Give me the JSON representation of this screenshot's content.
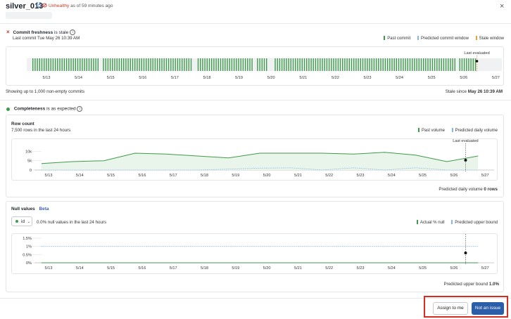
{
  "header": {
    "title": "silver_013",
    "status_label": "Unhealthy",
    "status_suffix": "as of 59 minutes ago"
  },
  "freshness": {
    "heading": "Commit freshness",
    "heading_suffix": "is stale",
    "last_commit": "Last commit Tue May 26 10:39 AM",
    "legend": [
      "Past commit",
      "Predicted commit window",
      "Stale window"
    ],
    "last_evaluated": "Last evaluated",
    "footer_left": "Showing up to 1,000 non-empty commits",
    "footer_right_prefix": "Stale since",
    "footer_right_value": "May 26 10:39 AM",
    "dates": [
      "5/13",
      "5/14",
      "5/15",
      "5/16",
      "5/17",
      "5/18",
      "5/19",
      "5/20",
      "5/21",
      "5/22",
      "5/23",
      "5/24",
      "5/25",
      "5/26",
      "5/27"
    ]
  },
  "completeness": {
    "heading": "Completeness",
    "heading_suffix": "is as expected",
    "row_count": {
      "title": "Row count",
      "subtitle": "7,500 rows in the last 24 hours",
      "legend": [
        "Past volume",
        "Predicted daily volume"
      ],
      "last_evaluated": "Last evaluated",
      "footer_prefix": "Predicted daily volume",
      "footer_value": "0 rows"
    },
    "null_values": {
      "title": "Null values",
      "badge": "Beta",
      "column": "id",
      "subtitle": "0.0% null values in the last 24 hours",
      "legend": [
        "Actual % null",
        "Predicted upper bound"
      ],
      "last_evaluated": "Last evaluated",
      "footer_prefix": "Predicted upper bound",
      "footer_value": "1.0%"
    }
  },
  "actions": {
    "assign": "Assign to me",
    "not_issue": "Not an issue"
  },
  "colors": {
    "past": "#3f9a4b",
    "predicted": "#86b7e8",
    "stale": "#e8a23a",
    "unhealthy": "#c5382a",
    "primary": "#2b5ea8"
  },
  "chart_data": [
    {
      "type": "bar",
      "title": "Commit freshness",
      "categories": [
        "5/13",
        "5/14",
        "5/15",
        "5/16",
        "5/17",
        "5/18",
        "5/19",
        "5/20",
        "5/21",
        "5/22",
        "5/23",
        "5/24",
        "5/25",
        "5/26",
        "5/27"
      ],
      "series": [
        {
          "name": "Past commit",
          "values": [
            1,
            1,
            1,
            1,
            1,
            1,
            1,
            1,
            1,
            1,
            1,
            1,
            1,
            1,
            0
          ]
        }
      ]
    },
    {
      "type": "line",
      "title": "Row count",
      "x": [
        "5/13",
        "5/14",
        "5/15",
        "5/16",
        "5/17",
        "5/18",
        "5/19",
        "5/20",
        "5/21",
        "5/22",
        "5/23",
        "5/24",
        "5/25",
        "5/26",
        "5/27"
      ],
      "yticks": [
        "0",
        "5k",
        "10k"
      ],
      "ylim": [
        0,
        12000
      ],
      "series": [
        {
          "name": "Past volume",
          "values": [
            3500,
            4500,
            5000,
            9000,
            8500,
            7500,
            6500,
            9000,
            9000,
            9000,
            8500,
            9500,
            8000,
            4500,
            7500
          ]
        },
        {
          "name": "Predicted daily volume",
          "values": [
            0,
            0,
            0,
            0,
            0,
            0,
            500,
            1000,
            1200,
            0,
            1200,
            0,
            1200,
            0,
            0
          ]
        }
      ]
    },
    {
      "type": "line",
      "title": "Null values",
      "x": [
        "5/13",
        "5/14",
        "5/15",
        "5/16",
        "5/17",
        "5/18",
        "5/19",
        "5/20",
        "5/21",
        "5/22",
        "5/23",
        "5/24",
        "5/25",
        "5/26",
        "5/27"
      ],
      "yticks": [
        "0%",
        "0.5%",
        "1%",
        "1.5%"
      ],
      "ylim": [
        0,
        1.5
      ],
      "series": [
        {
          "name": "Actual % null",
          "values": [
            0,
            0,
            0,
            0,
            0,
            0,
            0,
            0,
            0,
            0,
            0,
            0,
            0,
            0,
            0
          ]
        },
        {
          "name": "Predicted upper bound",
          "values": [
            1,
            1,
            1,
            1,
            1,
            1,
            1,
            1,
            1,
            1,
            1,
            1,
            1,
            1,
            1
          ]
        }
      ]
    }
  ]
}
